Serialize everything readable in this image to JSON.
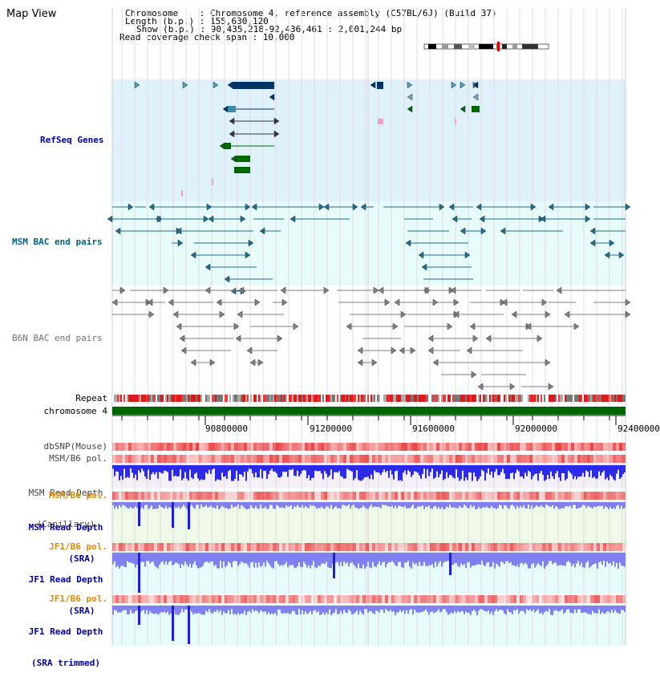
{
  "page": {
    "title": "Map View",
    "info_lines": [
      "Chromosome    : Chromosome 4, reference assembly (C57BL/6J) (Build 37)",
      "Length (b.p.) : 155,630,120",
      "Show (b.p.) : 90,435,218-92,436,461 : 2,001,244 bp",
      "Read coverage check span : 10,000"
    ]
  },
  "tracks": {
    "refseq": "RefSeq Genes",
    "msm_bac": "MSM BAC end pairs",
    "b6n_bac": "B6N BAC end pairs",
    "repeat": "Repeat",
    "chromosome": "chromosome 4",
    "dbsnp": "dbSNP(Mouse)",
    "msm_b6_pol_1": "MSM/B6 pol.",
    "msm_depth_cap_1": "MSM Read Depth",
    "msm_depth_cap_2": "(Capillary)",
    "msm_b6_pol_2": "MSM/B6 pol.",
    "msm_depth_sra_1": "MSM Read Depth",
    "msm_depth_sra_2": "(SRA)",
    "jf1_b6_pol_1": "JF1/B6 pol.",
    "jf1_depth_sra_1": "JF1 Read Depth",
    "jf1_depth_sra_2": "(SRA)",
    "jf1_b6_pol_2": "JF1/B6 pol.",
    "jf1_depth_trim_1": "JF1 Read Depth",
    "jf1_depth_trim_2": "(SRA trimmed)"
  },
  "axis": {
    "ticks": [
      "90800000",
      "91200000",
      "91600000",
      "92000000",
      "92400000"
    ]
  },
  "colors": {
    "refseq_label": "#00009c",
    "msm_bac_label": "#006080",
    "b6n_label": "#707070",
    "refseq_bg": "#dff1fa",
    "msm_bac_bg": "#e8fbfb",
    "gene_dark": "#003366",
    "gene_green": "#006600",
    "pol_label": "#e08a00",
    "depth_label": "#0000a0",
    "depth_blue": "#2a2ae0",
    "chromosome_green": "#006400"
  }
}
